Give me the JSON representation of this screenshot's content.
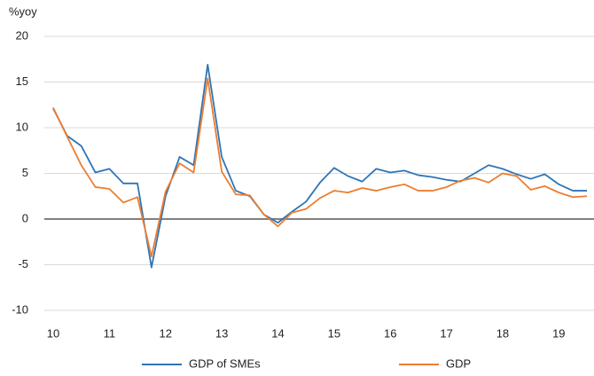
{
  "chart_data": {
    "type": "line",
    "y_label": "%yoy",
    "categories": [
      "10",
      null,
      null,
      null,
      "11",
      null,
      null,
      null,
      "12",
      null,
      null,
      null,
      "13",
      null,
      null,
      null,
      "14",
      null,
      null,
      null,
      "15",
      null,
      null,
      null,
      "16",
      null,
      null,
      null,
      "17",
      null,
      null,
      null,
      "18",
      null,
      null,
      null,
      "19",
      null,
      null
    ],
    "series": [
      {
        "name": "GDP of SMEs",
        "color": "#2e75b6",
        "values": [
          12.1,
          9.1,
          8.0,
          5.1,
          5.5,
          3.9,
          3.9,
          -5.3,
          2.5,
          6.8,
          5.9,
          16.9,
          6.8,
          3.1,
          2.5,
          0.5,
          -0.4,
          0.8,
          1.9,
          4.0,
          5.6,
          4.7,
          4.1,
          5.5,
          5.1,
          5.3,
          4.8,
          4.6,
          4.3,
          4.1,
          5.0,
          5.9,
          5.5,
          4.9,
          4.4,
          4.9,
          3.8,
          3.1,
          3.1
        ]
      },
      {
        "name": "GDP",
        "color": "#ed7d31",
        "values": [
          12.2,
          9.0,
          5.9,
          3.5,
          3.3,
          1.8,
          2.4,
          -4.1,
          3.0,
          6.1,
          5.1,
          15.4,
          5.2,
          2.7,
          2.6,
          0.5,
          -0.8,
          0.7,
          1.1,
          2.3,
          3.1,
          2.9,
          3.4,
          3.1,
          3.5,
          3.8,
          3.1,
          3.1,
          3.5,
          4.2,
          4.5,
          4.0,
          5.0,
          4.7,
          3.2,
          3.6,
          2.9,
          2.4,
          2.5
        ]
      }
    ],
    "ylim": [
      -10,
      20
    ],
    "yticks": [
      -10,
      -5,
      0,
      5,
      10,
      15,
      20
    ],
    "grid": true,
    "legend": "bottom"
  }
}
